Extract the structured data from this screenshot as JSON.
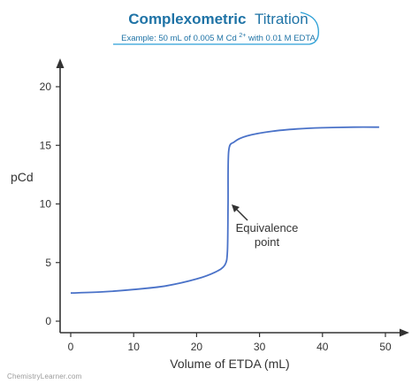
{
  "header": {
    "title_bold": "Complexometric",
    "title_regular": "Titration",
    "subtitle_pre": "Example: 50 mL of 0.005 M Cd",
    "subtitle_sup": "2+",
    "subtitle_post": " with 0.01 M EDTA"
  },
  "watermark": "ChemistryLearner.com",
  "chart_data": {
    "type": "line",
    "xlabel": "Volume of ETDA (mL)",
    "ylabel": "pCd",
    "xlim": [
      0,
      50
    ],
    "ylim": [
      0,
      20
    ],
    "x_ticks": [
      "0",
      "10",
      "20",
      "30",
      "40",
      "50"
    ],
    "y_ticks": [
      "0",
      "5",
      "10",
      "15",
      "20"
    ],
    "grid": false,
    "series": [
      {
        "x": [
          0,
          5,
          10,
          15,
          20,
          23,
          24.5,
          24.9,
          25,
          25.1,
          26,
          28,
          32,
          36,
          40,
          45,
          49
        ],
        "values": [
          2.4,
          2.5,
          2.7,
          3.0,
          3.6,
          4.2,
          4.8,
          6.0,
          10.0,
          14.5,
          15.3,
          15.8,
          16.2,
          16.4,
          16.5,
          16.55,
          16.55
        ]
      }
    ],
    "annotations": [
      {
        "text_line1": "Equivalence",
        "text_line2": "point",
        "x": 25,
        "y": 10
      }
    ]
  }
}
